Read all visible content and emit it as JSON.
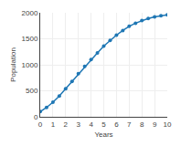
{
  "chart_data": {
    "type": "line",
    "xlabel": "Years",
    "ylabel": "Population",
    "x": [
      0,
      0.5,
      1.0,
      1.5,
      2.0,
      2.5,
      3.0,
      3.5,
      4.0,
      4.5,
      5.0,
      5.5,
      6.0,
      6.5,
      7.0,
      7.5,
      8.0,
      8.5,
      9.0,
      9.5,
      10.0
    ],
    "values": [
      100,
      180,
      280,
      400,
      540,
      680,
      830,
      970,
      1100,
      1230,
      1360,
      1470,
      1570,
      1660,
      1740,
      1800,
      1850,
      1890,
      1920,
      1945,
      1960
    ],
    "xlim": [
      0,
      10
    ],
    "ylim": [
      0,
      2000
    ],
    "xticks": [
      0,
      1,
      2,
      3,
      4,
      5,
      6,
      7,
      8,
      9,
      10
    ],
    "yticks": [
      0,
      500,
      1000,
      1500,
      2000
    ],
    "marker": "circle",
    "grid": true
  }
}
